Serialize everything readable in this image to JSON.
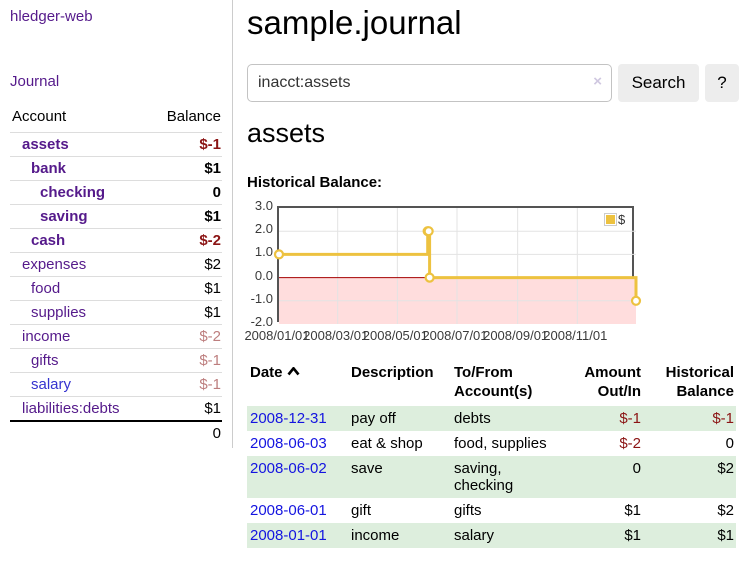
{
  "app": {
    "brand": "hledger-web"
  },
  "colors": {
    "link_purple": "#551a8b",
    "link_blue": "#1414e0",
    "negative_strong": "#8b1414",
    "negative_muted": "#bd7e7e",
    "row_green": "#ddeedd",
    "series_yellow": "#edc240"
  },
  "sidebar": {
    "journal_link": "Journal",
    "accounts_table": {
      "headers": [
        "Account",
        "Balance"
      ],
      "rows": [
        {
          "name": "assets",
          "indent": 0,
          "bold": true,
          "balance": "$-1",
          "tone": "negative-strong",
          "link": "visited"
        },
        {
          "name": "bank",
          "indent": 1,
          "bold": true,
          "balance": "$1",
          "tone": "positive",
          "link": "visited"
        },
        {
          "name": "checking",
          "indent": 2,
          "bold": true,
          "balance": "0",
          "tone": "positive",
          "link": "visited"
        },
        {
          "name": "saving",
          "indent": 2,
          "bold": true,
          "balance": "$1",
          "tone": "positive",
          "link": "visited"
        },
        {
          "name": "cash",
          "indent": 1,
          "bold": true,
          "balance": "$-2",
          "tone": "negative-strong",
          "link": "visited"
        },
        {
          "name": "expenses",
          "indent": 0,
          "bold": false,
          "balance": "$2",
          "tone": "positive",
          "link": "visited"
        },
        {
          "name": "food",
          "indent": 1,
          "bold": false,
          "balance": "$1",
          "tone": "positive",
          "link": "visited"
        },
        {
          "name": "supplies",
          "indent": 1,
          "bold": false,
          "balance": "$1",
          "tone": "positive",
          "link": "visited"
        },
        {
          "name": "income",
          "indent": 0,
          "bold": false,
          "balance": "$-2",
          "tone": "negative-muted",
          "link": "visited"
        },
        {
          "name": "gifts",
          "indent": 1,
          "bold": false,
          "balance": "$-1",
          "tone": "negative-muted",
          "link": "visited"
        },
        {
          "name": "salary",
          "indent": 1,
          "bold": false,
          "balance": "$-1",
          "tone": "negative-muted",
          "link": "unvisited"
        },
        {
          "name": "liabilities:debts",
          "indent": 0,
          "bold": false,
          "balance": "$1",
          "tone": "positive",
          "link": "visited"
        }
      ],
      "total": "0"
    }
  },
  "main": {
    "title": "sample.journal",
    "search": {
      "value": "inacct:assets",
      "clear_icon": "×",
      "button_label": "Search",
      "help_label": "?"
    },
    "account_heading": "assets",
    "chart_label": "Historical Balance:",
    "chart_data": {
      "type": "line",
      "step": true,
      "title": "Historical Balance:",
      "x_range": [
        "2008-01-01",
        "2008-12-31"
      ],
      "ylim": [
        -2,
        3
      ],
      "y_ticks": [
        3.0,
        2.0,
        1.0,
        0.0,
        -1.0,
        -2.0
      ],
      "x_tick_labels": [
        "2008/01/01",
        "2008/03/01",
        "2008/05/01",
        "2008/07/01",
        "2008/09/01",
        "2008/11/01"
      ],
      "x_tick_dates": [
        "2008-01-01",
        "2008-03-01",
        "2008-05-01",
        "2008-07-01",
        "2008-09-01",
        "2008-11-01"
      ],
      "series": [
        {
          "name": "$",
          "color": "#edc240",
          "points": [
            {
              "date": "2008-01-01",
              "value": 1
            },
            {
              "date": "2008-06-01",
              "value": 2
            },
            {
              "date": "2008-06-02",
              "value": 2
            },
            {
              "date": "2008-06-03",
              "value": 0
            },
            {
              "date": "2008-12-31",
              "value": -1
            }
          ]
        }
      ],
      "legend_position": "top-right",
      "negative_region_color": "#ffdddd",
      "zero_line_color": "#a40000",
      "grid_color": "#e3e3e3",
      "grid": true
    },
    "register": {
      "headers": [
        {
          "label": "Date",
          "align": "left",
          "sorted_asc": true
        },
        {
          "label": "Description",
          "align": "left"
        },
        {
          "label": "To/From Account(s)",
          "align": "left"
        },
        {
          "label": "Amount Out/In",
          "align": "right"
        },
        {
          "label": "Historical Balance",
          "align": "right"
        }
      ],
      "rows": [
        {
          "date": "2008-12-31",
          "description": "pay off",
          "accounts": "debts",
          "amount": "$-1",
          "amount_tone": "negative-strong",
          "balance": "$-1",
          "balance_tone": "negative-strong"
        },
        {
          "date": "2008-06-03",
          "description": "eat & shop",
          "accounts": "food, supplies",
          "amount": "$-2",
          "amount_tone": "negative-strong",
          "balance": "0",
          "balance_tone": "positive"
        },
        {
          "date": "2008-06-02",
          "description": "save",
          "accounts": "saving, checking",
          "amount": "0",
          "amount_tone": "positive",
          "balance": "$2",
          "balance_tone": "positive"
        },
        {
          "date": "2008-06-01",
          "description": "gift",
          "accounts": "gifts",
          "amount": "$1",
          "amount_tone": "positive",
          "balance": "$2",
          "balance_tone": "positive"
        },
        {
          "date": "2008-01-01",
          "description": "income",
          "accounts": "salary",
          "amount": "$1",
          "amount_tone": "positive",
          "balance": "$1",
          "balance_tone": "positive"
        }
      ]
    }
  }
}
